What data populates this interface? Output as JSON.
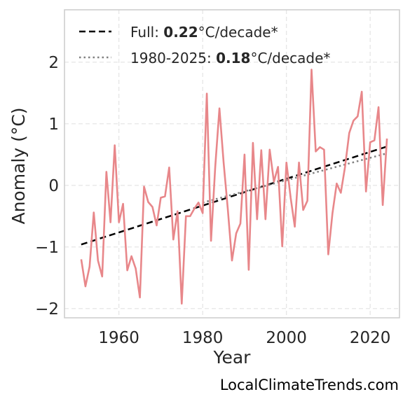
{
  "chart_data": {
    "type": "line",
    "xlabel": "Year",
    "ylabel": "Anomaly (°C)",
    "xlim": [
      1947,
      2027
    ],
    "ylim": [
      -2.15,
      2.85
    ],
    "xticks": [
      1960,
      1980,
      2000,
      2020
    ],
    "yticks": [
      -2,
      -1,
      0,
      1,
      2
    ],
    "ytick_labels": [
      "−2",
      "−1",
      "0",
      "1",
      "2"
    ],
    "grid": true,
    "legend_position": "top-left",
    "series": [
      {
        "color": "#e8878a",
        "x": [
          1951,
          1952,
          1953,
          1954,
          1955,
          1956,
          1957,
          1958,
          1959,
          1960,
          1961,
          1962,
          1963,
          1964,
          1965,
          1966,
          1967,
          1968,
          1969,
          1970,
          1971,
          1972,
          1973,
          1974,
          1975,
          1976,
          1977,
          1978,
          1979,
          1980,
          1981,
          1982,
          1983,
          1984,
          1985,
          1986,
          1987,
          1988,
          1989,
          1990,
          1991,
          1992,
          1993,
          1994,
          1995,
          1996,
          1997,
          1998,
          1999,
          2000,
          2001,
          2002,
          2003,
          2004,
          2005,
          2006,
          2007,
          2008,
          2009,
          2010,
          2011,
          2012,
          2013,
          2014,
          2015,
          2016,
          2017,
          2018,
          2019,
          2020,
          2021,
          2022,
          2023,
          2024
        ],
        "values": [
          -1.2,
          -1.64,
          -1.32,
          -0.44,
          -1.22,
          -1.48,
          0.22,
          -0.6,
          0.65,
          -0.6,
          -0.3,
          -1.38,
          -1.15,
          -1.35,
          -1.82,
          -0.02,
          -0.27,
          -0.35,
          -0.65,
          -0.2,
          -0.18,
          0.29,
          -0.88,
          -0.42,
          -1.92,
          -0.5,
          -0.5,
          -0.38,
          -0.28,
          -0.45,
          1.49,
          -0.9,
          0.3,
          1.25,
          0.38,
          -0.38,
          -1.22,
          -0.78,
          -0.62,
          0.5,
          -1.37,
          0.69,
          -0.55,
          0.57,
          -0.55,
          0.58,
          0.06,
          0.3,
          -0.99,
          0.37,
          -0.2,
          -0.67,
          0.37,
          -0.4,
          -0.25,
          1.88,
          0.55,
          0.62,
          0.58,
          -1.12,
          -0.45,
          0.03,
          -0.12,
          0.3,
          0.85,
          1.05,
          1.12,
          1.52,
          -0.1,
          0.7,
          0.73,
          1.27,
          -0.32,
          0.76
        ]
      }
    ],
    "trends": [
      {
        "label_prefix": "Full: ",
        "value": "0.22",
        "label_suffix": "°C/decade*",
        "style": "dashed",
        "color": "#000000",
        "x": [
          1951,
          2024
        ],
        "y": [
          -0.96,
          0.63
        ]
      },
      {
        "label_prefix": "1980-2025: ",
        "value": "0.18",
        "label_suffix": "°C/decade*",
        "style": "dotted",
        "color": "#808080",
        "x": [
          1980,
          2024
        ],
        "y": [
          -0.28,
          0.52
        ]
      }
    ]
  },
  "footer": "LocalClimateTrends.com"
}
